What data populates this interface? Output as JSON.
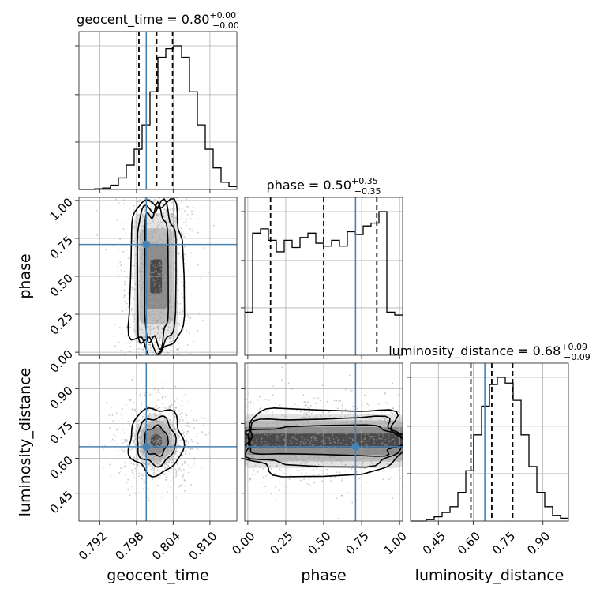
{
  "chart_data": {
    "type": "corner",
    "parameters": [
      "geocent_time",
      "phase",
      "luminosity_distance"
    ],
    "titles": [
      {
        "param": "geocent_time",
        "prefix": "geocent_time = 0.80",
        "sup": "+0.00",
        "sub": "−0.00"
      },
      {
        "param": "phase",
        "prefix": "phase = 0.50",
        "sup": "+0.35",
        "sub": "−0.35"
      },
      {
        "param": "luminosity_distance",
        "prefix": "luminosity_distance = 0.68",
        "sup": "+0.09",
        "sub": "−0.09"
      }
    ],
    "axes": {
      "geocent_time": {
        "range": [
          0.7886,
          0.8144
        ],
        "ticks": [
          "0.792",
          "0.798",
          "0.804",
          "0.810"
        ],
        "tick_values": [
          0.792,
          0.798,
          0.804,
          0.81
        ]
      },
      "phase": {
        "range": [
          -0.02,
          1.02
        ],
        "ticks": [
          "0.00",
          "0.25",
          "0.50",
          "0.75",
          "1.00"
        ],
        "tick_values": [
          0,
          0.25,
          0.5,
          0.75,
          1.0
        ]
      },
      "luminosity_distance": {
        "range": [
          0.33,
          1.01
        ],
        "ticks": [
          "0.45",
          "0.60",
          "0.75",
          "0.90"
        ],
        "tick_values": [
          0.45,
          0.6,
          0.75,
          0.9
        ]
      }
    },
    "truths": {
      "geocent_time": 0.7996,
      "phase": 0.71,
      "luminosity_distance": 0.65
    },
    "quantiles": {
      "geocent_time": [
        0.7984,
        0.8013,
        0.8039
      ],
      "phase": [
        0.15,
        0.5,
        0.85
      ],
      "luminosity_distance": [
        0.59,
        0.68,
        0.77
      ]
    },
    "histograms": {
      "geocent_time": {
        "bin_edges_start": 0.7886,
        "bin_width": 0.00129,
        "counts": [
          0,
          0,
          0.5,
          1,
          3,
          8,
          17,
          28,
          45,
          68,
          92,
          98,
          100,
          92,
          68,
          45,
          28,
          15,
          5,
          2
        ]
      },
      "phase": {
        "bin_edges_start": -0.02,
        "bin_width": 0.052,
        "counts": [
          30,
          85,
          88,
          80,
          72,
          80,
          75,
          82,
          85,
          78,
          76,
          80,
          76,
          86,
          84,
          90,
          92,
          100,
          30,
          28
        ]
      },
      "luminosity_distance": {
        "bin_edges_start": 0.33,
        "bin_width": 0.034,
        "counts": [
          0,
          0,
          1,
          3,
          6,
          10,
          20,
          35,
          60,
          80,
          95,
          100,
          96,
          84,
          60,
          38,
          20,
          10,
          4,
          2
        ]
      }
    },
    "density_peak": {
      "geocent_time": 0.8012,
      "phase": 0.5,
      "luminosity_distance": 0.675
    },
    "grid": true,
    "colors": {
      "truth": "#4682b4",
      "hist": "#000000",
      "scatter": "#9a9a9a",
      "density": "#000000"
    }
  }
}
